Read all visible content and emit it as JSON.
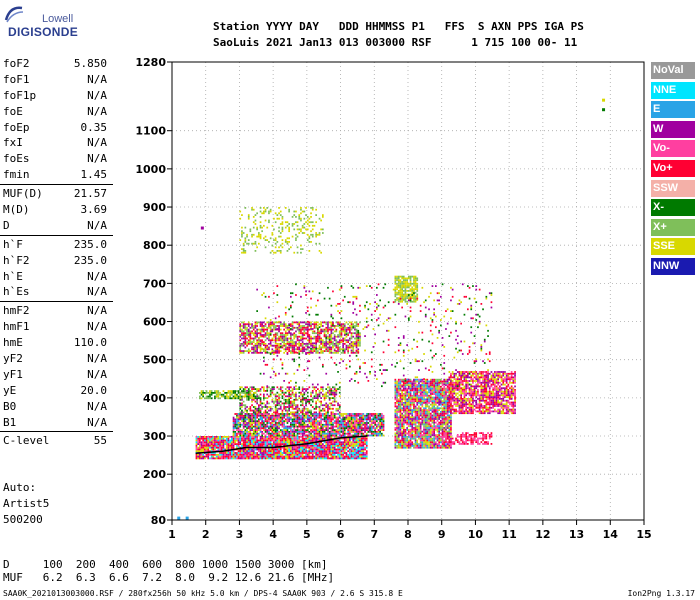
{
  "logo": {
    "top": "Lowell",
    "main": "DIGISONDE"
  },
  "header": {
    "line1": "Station YYYY DAY   DDD HHMMSS P1   FFS  S AXN PPS IGA PS",
    "line2": "SaoLuis 2021 Jan13 013 003000 RSF      1 715 100 00- 11"
  },
  "parameters": [
    [
      {
        "name": "foF2",
        "value": "5.850"
      },
      {
        "name": "foF1",
        "value": "N/A"
      },
      {
        "name": "foF1p",
        "value": "N/A"
      },
      {
        "name": "foE",
        "value": "N/A"
      },
      {
        "name": "foEp",
        "value": "0.35"
      },
      {
        "name": "fxI",
        "value": "N/A"
      },
      {
        "name": "foEs",
        "value": "N/A"
      },
      {
        "name": "fmin",
        "value": "1.45"
      }
    ],
    [
      {
        "name": "MUF(D)",
        "value": "21.57"
      },
      {
        "name": "M(D)",
        "value": "3.69"
      },
      {
        "name": "D",
        "value": "N/A"
      }
    ],
    [
      {
        "name": "h`F",
        "value": "235.0"
      },
      {
        "name": "h`F2",
        "value": "235.0"
      },
      {
        "name": "h`E",
        "value": "N/A"
      },
      {
        "name": "h`Es",
        "value": "N/A"
      }
    ],
    [
      {
        "name": "hmF2",
        "value": "N/A"
      },
      {
        "name": "hmF1",
        "value": "N/A"
      },
      {
        "name": "hmE",
        "value": "110.0"
      },
      {
        "name": "yF2",
        "value": "N/A"
      },
      {
        "name": "yF1",
        "value": "N/A"
      },
      {
        "name": "yE",
        "value": "20.0"
      },
      {
        "name": "B0",
        "value": "N/A"
      },
      {
        "name": "B1",
        "value": "N/A"
      }
    ],
    [
      {
        "name": "C-level",
        "value": "55"
      }
    ]
  ],
  "auto": {
    "line1": "Auto:",
    "line2": "Artist5",
    "line3": "500200"
  },
  "legend": [
    {
      "label": "NoVal",
      "color": "#999999"
    },
    {
      "label": "NNE",
      "color": "#00e5ff"
    },
    {
      "label": "E",
      "color": "#29a3e6"
    },
    {
      "label": "W",
      "color": "#a0009f"
    },
    {
      "label": "Vo-",
      "color": "#ff3fa0"
    },
    {
      "label": "Vo+",
      "color": "#ff0033"
    },
    {
      "label": "SSW",
      "color": "#f4b0a8"
    },
    {
      "label": "X-",
      "color": "#007a00"
    },
    {
      "label": "X+",
      "color": "#7fbf5a"
    },
    {
      "label": "SSE",
      "color": "#d8d800"
    },
    {
      "label": "NNW",
      "color": "#1a1ab0"
    }
  ],
  "dmuf": {
    "d_line": "D     100  200  400  600  800 1000 1500 3000 [km]",
    "muf_line": "MUF   6.2  6.3  6.6  7.2  8.0  9.2 12.6 21.6 [MHz]"
  },
  "footer": {
    "left": "SAA0K_2021013003000.RSF / 280fx256h 50 kHz 5.0 km / DPS-4 SAA0K 903 / 2.6 S 315.8 E",
    "right": "Ion2Png 1.3.17"
  },
  "chart_data": {
    "type": "scatter",
    "title": "",
    "xlabel": "",
    "ylabel": "",
    "xlim": [
      1,
      15
    ],
    "ylim": [
      80,
      1280
    ],
    "x_ticks": [
      1,
      2,
      3,
      4,
      5,
      6,
      7,
      8,
      9,
      10,
      11,
      12,
      13,
      14,
      15
    ],
    "y_ticks": [
      80,
      200,
      300,
      400,
      500,
      600,
      700,
      800,
      900,
      1000,
      1100,
      1280
    ],
    "grid": true,
    "grid_style": "dotted",
    "clusters": [
      {
        "name": "low F trace",
        "x": [
          1.7,
          6.8
        ],
        "y": [
          240,
          300
        ],
        "density": 0.95,
        "colors": [
          "#ff0033",
          "#ff3fa0",
          "#ff0033",
          "#a0009f",
          "#d8d800",
          "#00e5ff"
        ]
      },
      {
        "name": "F trace band",
        "x": [
          2.8,
          7.3
        ],
        "y": [
          300,
          360
        ],
        "density": 0.9,
        "colors": [
          "#ff0033",
          "#ff3fa0",
          "#d8d800",
          "#a0009f",
          "#29a3e6",
          "#007a00"
        ]
      },
      {
        "name": "second band",
        "x": [
          3.0,
          6.0
        ],
        "y": [
          360,
          430
        ],
        "density": 0.55,
        "colors": [
          "#d8d800",
          "#ff0033",
          "#007a00",
          "#7fbf5a",
          "#a0009f"
        ]
      },
      {
        "name": "oblique 8-9",
        "x": [
          7.6,
          9.3
        ],
        "y": [
          270,
          450
        ],
        "density": 0.9,
        "colors": [
          "#ff0033",
          "#d8d800",
          "#a0009f",
          "#ff3fa0",
          "#29a3e6",
          "#7fbf5a"
        ]
      },
      {
        "name": "west cluster",
        "x": [
          9.2,
          11.2
        ],
        "y": [
          360,
          470
        ],
        "density": 0.8,
        "colors": [
          "#a0009f",
          "#ff3fa0",
          "#d8d800",
          "#ff0033"
        ]
      },
      {
        "name": "tail 9-10",
        "x": [
          9.0,
          10.5
        ],
        "y": [
          280,
          310
        ],
        "density": 0.6,
        "colors": [
          "#ff0033",
          "#ff3fa0"
        ]
      },
      {
        "name": "hmF2 echo",
        "x": [
          3.0,
          6.6
        ],
        "y": [
          520,
          600
        ],
        "density": 0.7,
        "colors": [
          "#d8d800",
          "#a0009f",
          "#ff0033",
          "#7fbf5a"
        ]
      },
      {
        "name": "multi-hop",
        "x": [
          3.0,
          5.5
        ],
        "y": [
          780,
          900
        ],
        "density": 0.18,
        "colors": [
          "#d8d800",
          "#7fbf5a"
        ]
      },
      {
        "name": "8 MHz patch",
        "x": [
          7.6,
          8.3
        ],
        "y": [
          650,
          720
        ],
        "density": 0.8,
        "colors": [
          "#d8d800",
          "#7fbf5a"
        ]
      },
      {
        "name": "green pair",
        "x": [
          1.8,
          3.5
        ],
        "y": [
          400,
          420
        ],
        "density": 0.7,
        "colors": [
          "#007a00",
          "#7fbf5a",
          "#d8d800"
        ]
      },
      {
        "name": "sparse mid",
        "x": [
          3.5,
          10.5
        ],
        "y": [
          430,
          700
        ],
        "density": 0.06,
        "colors": [
          "#a0009f",
          "#ff0033",
          "#d8d800",
          "#007a00"
        ]
      }
    ],
    "trace": {
      "name": "",
      "color": "#000000",
      "x": [
        1.7,
        2.5,
        3.2,
        4.0,
        5.0,
        6.0,
        6.8
      ],
      "y": [
        255,
        260,
        270,
        270,
        280,
        295,
        300
      ]
    },
    "markers": [
      {
        "x": 1.2,
        "y": 85,
        "color": "#29a3e6"
      },
      {
        "x": 1.45,
        "y": 85,
        "color": "#29a3e6"
      },
      {
        "x": 1.9,
        "y": 845,
        "color": "#a0009f"
      },
      {
        "x": 13.8,
        "y": 1180,
        "color": "#d8d800"
      },
      {
        "x": 13.8,
        "y": 1155,
        "color": "#007a00"
      }
    ]
  }
}
